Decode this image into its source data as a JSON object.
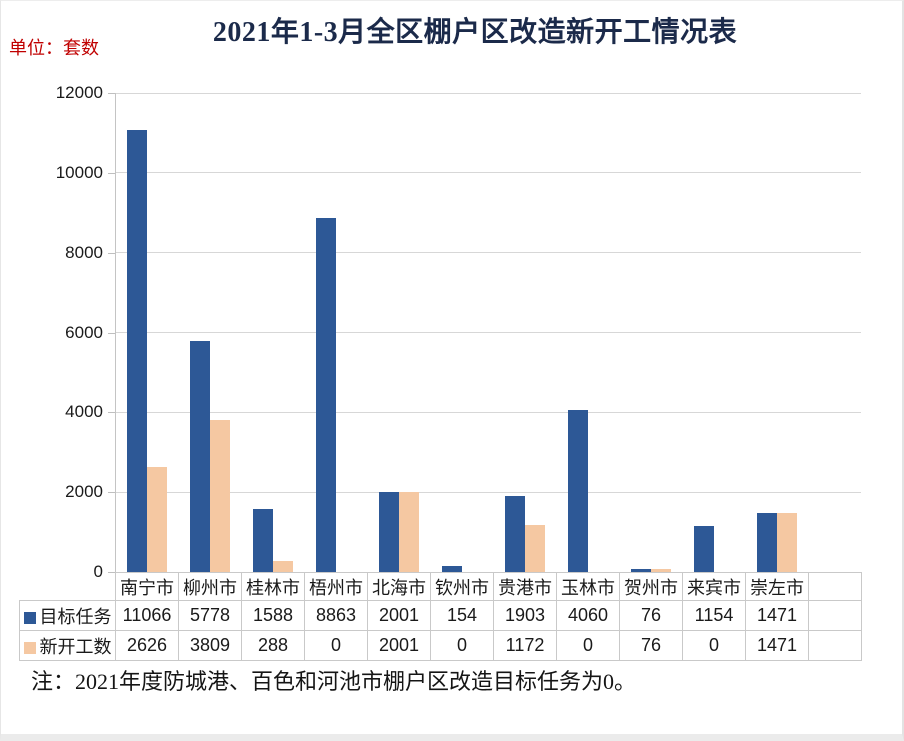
{
  "header": {
    "title": "2021年1-3月全区棚户区改造新开工情况表",
    "unit_label": "单位：套数"
  },
  "chart_data": {
    "type": "bar",
    "title": "2021年1-3月全区棚户区改造新开工情况表",
    "unit": "套数",
    "categories": [
      "南宁市",
      "柳州市",
      "桂林市",
      "梧州市",
      "北海市",
      "钦州市",
      "贵港市",
      "玉林市",
      "贺州市",
      "来宾市",
      "崇左市"
    ],
    "series": [
      {
        "name": "目标任务",
        "color": "#2d5896",
        "values": [
          11066,
          5778,
          1588,
          8863,
          2001,
          154,
          1903,
          4060,
          76,
          1154,
          1471
        ]
      },
      {
        "name": "新开工数",
        "color": "#f5c8a2",
        "values": [
          2626,
          3809,
          288,
          0,
          2001,
          0,
          1172,
          0,
          76,
          0,
          1471
        ]
      }
    ],
    "ylim": [
      0,
      12000
    ],
    "yticks": [
      0,
      2000,
      4000,
      6000,
      8000,
      10000,
      12000
    ],
    "grid": true,
    "legend_position": "data-table-left",
    "data_table_shown": true
  },
  "note": {
    "text": "注：2021年度防城港、百色和河池市棚户区改造目标任务为0。"
  },
  "colors": {
    "target_series": "#2d5896",
    "started_series": "#f5c8a2",
    "gridline": "#d7d7d7",
    "table_border": "#c9c9c9",
    "title_text": "#1b2a4a",
    "unit_text": "#c00000"
  }
}
